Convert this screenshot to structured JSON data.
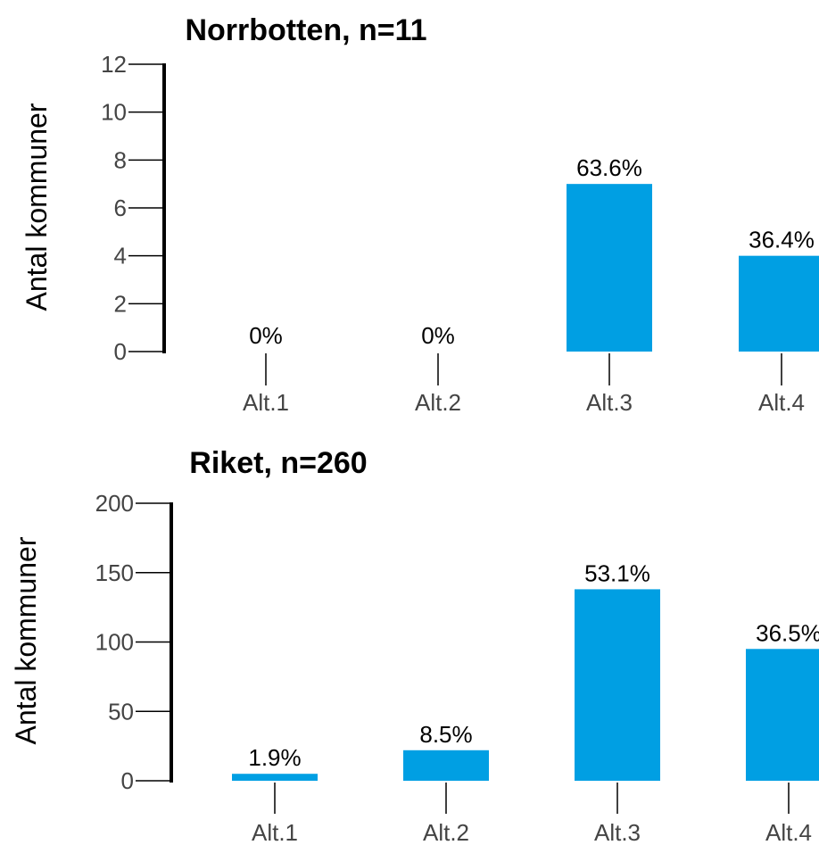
{
  "chart_data": [
    {
      "type": "bar",
      "title": "Norrbotten, n=11",
      "ylabel": "Antal kommuner",
      "xlabel": "",
      "categories": [
        "Alt.1",
        "Alt.2",
        "Alt.3",
        "Alt.4"
      ],
      "values": [
        0,
        0,
        7,
        4
      ],
      "data_labels": [
        "0%",
        "0%",
        "63.6%",
        "36.4%"
      ],
      "ylim": [
        0,
        12
      ],
      "yticks": [
        0,
        2,
        4,
        6,
        8,
        10,
        12
      ],
      "ytick_labels": [
        "0",
        "2",
        "4",
        "6",
        "8",
        "10",
        "12"
      ],
      "bar_color": "#009fe3",
      "grid": false
    },
    {
      "type": "bar",
      "title": "Riket, n=260",
      "ylabel": "Antal kommuner",
      "xlabel": "",
      "categories": [
        "Alt.1",
        "Alt.2",
        "Alt.3",
        "Alt.4"
      ],
      "values": [
        5,
        22,
        138,
        95
      ],
      "data_labels": [
        "1.9%",
        "8.5%",
        "53.1%",
        "36.5%"
      ],
      "ylim": [
        0,
        200
      ],
      "yticks": [
        0,
        50,
        100,
        150,
        200
      ],
      "ytick_labels": [
        "0",
        "50",
        "100",
        "150",
        "200"
      ],
      "bar_color": "#009fe3",
      "grid": false
    }
  ]
}
